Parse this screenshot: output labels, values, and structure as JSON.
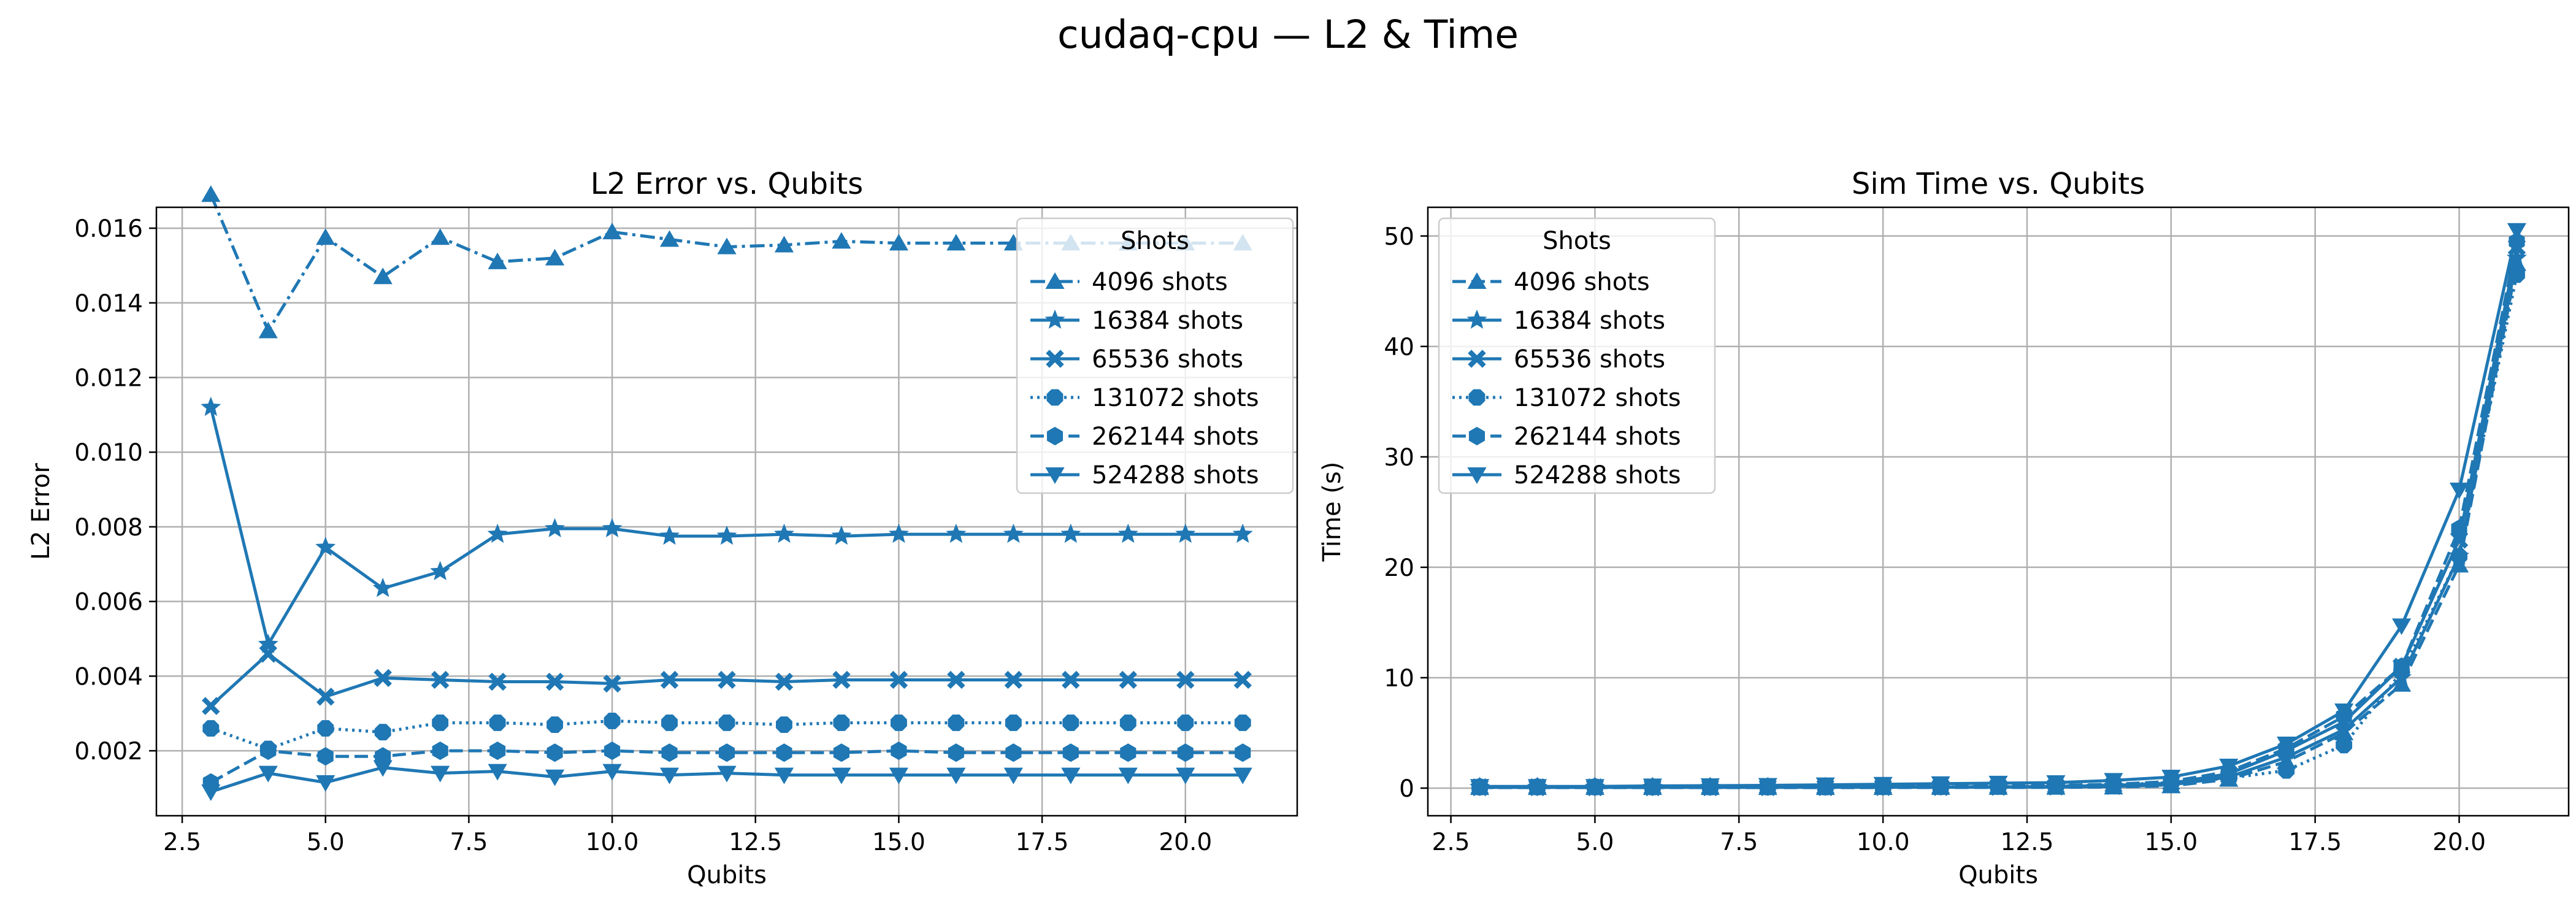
{
  "figure": {
    "suptitle": "cudaq-cpu — L2 & Time"
  },
  "chart_data": [
    {
      "type": "line",
      "title": "L2 Error vs. Qubits",
      "xlabel": "Qubits",
      "ylabel": "L2 Error",
      "xlim": [
        2.05,
        21.95
      ],
      "ylim": [
        0.00026,
        0.01656
      ],
      "xticks": [
        2.5,
        5.0,
        7.5,
        10.0,
        12.5,
        15.0,
        17.5,
        20.0
      ],
      "xtick_labels": [
        "2.5",
        "5.0",
        "7.5",
        "10.0",
        "12.5",
        "15.0",
        "17.5",
        "20.0"
      ],
      "yticks": [
        0.002,
        0.004,
        0.006,
        0.008,
        0.01,
        0.012,
        0.014,
        0.016
      ],
      "ytick_labels": [
        "0.002",
        "0.004",
        "0.006",
        "0.008",
        "0.010",
        "0.012",
        "0.014",
        "0.016"
      ],
      "grid": true,
      "legend": {
        "title": "Shots",
        "placement": "upper right"
      },
      "color": "#1f77b4",
      "x": [
        3,
        4,
        5,
        6,
        7,
        8,
        9,
        10,
        11,
        12,
        13,
        14,
        15,
        16,
        17,
        18,
        19,
        20,
        21
      ],
      "series": [
        {
          "name": "4096 shots",
          "marker": "triangle-up",
          "linestyle": "dashdot",
          "values": [
            0.0169,
            0.01325,
            0.01575,
            0.0147,
            0.01575,
            0.0151,
            0.0152,
            0.0159,
            0.0157,
            0.0155,
            0.01555,
            0.01565,
            0.0156,
            0.0156,
            0.0156,
            0.0156,
            0.0156,
            0.0156,
            0.0156
          ]
        },
        {
          "name": "16384 shots",
          "marker": "star",
          "linestyle": "solid",
          "values": [
            0.0112,
            0.00485,
            0.00745,
            0.00635,
            0.0068,
            0.0078,
            0.00795,
            0.00795,
            0.00775,
            0.00775,
            0.0078,
            0.00775,
            0.0078,
            0.0078,
            0.0078,
            0.0078,
            0.0078,
            0.0078,
            0.0078
          ]
        },
        {
          "name": "65536 shots",
          "marker": "x-filled",
          "linestyle": "solid",
          "values": [
            0.0032,
            0.0046,
            0.00345,
            0.00395,
            0.0039,
            0.00385,
            0.00385,
            0.0038,
            0.0039,
            0.0039,
            0.00385,
            0.0039,
            0.0039,
            0.0039,
            0.0039,
            0.0039,
            0.0039,
            0.0039,
            0.0039
          ]
        },
        {
          "name": "131072 shots",
          "marker": "octagon",
          "linestyle": "dotted",
          "values": [
            0.0026,
            0.00205,
            0.0026,
            0.0025,
            0.00275,
            0.00275,
            0.0027,
            0.0028,
            0.00275,
            0.00275,
            0.0027,
            0.00275,
            0.00275,
            0.00275,
            0.00275,
            0.00275,
            0.00275,
            0.00275,
            0.00275
          ]
        },
        {
          "name": "262144 shots",
          "marker": "hexagon",
          "linestyle": "dashed",
          "values": [
            0.00115,
            0.002,
            0.00185,
            0.00185,
            0.002,
            0.002,
            0.00195,
            0.002,
            0.00195,
            0.00195,
            0.00195,
            0.00195,
            0.002,
            0.00195,
            0.00195,
            0.00195,
            0.00195,
            0.00195,
            0.00195
          ]
        },
        {
          "name": "524288 shots",
          "marker": "triangle-down",
          "linestyle": "solid",
          "values": [
            0.0009,
            0.0014,
            0.00115,
            0.00155,
            0.0014,
            0.00145,
            0.0013,
            0.00145,
            0.00135,
            0.0014,
            0.00135,
            0.00135,
            0.00135,
            0.00135,
            0.00135,
            0.00135,
            0.00135,
            0.00135,
            0.00135
          ]
        }
      ]
    },
    {
      "type": "line",
      "title": "Sim Time vs. Qubits",
      "xlabel": "Qubits",
      "ylabel": "Time (s)",
      "xlim": [
        2.1,
        21.9
      ],
      "ylim": [
        -2.5,
        52.6
      ],
      "xticks": [
        2.5,
        5.0,
        7.5,
        10.0,
        12.5,
        15.0,
        17.5,
        20.0
      ],
      "xtick_labels": [
        "2.5",
        "5.0",
        "7.5",
        "10.0",
        "12.5",
        "15.0",
        "17.5",
        "20.0"
      ],
      "yticks": [
        0,
        10,
        20,
        30,
        40,
        50
      ],
      "ytick_labels": [
        "0",
        "10",
        "20",
        "30",
        "40",
        "50"
      ],
      "grid": true,
      "legend": {
        "title": "Shots",
        "placement": "upper left"
      },
      "color": "#1f77b4",
      "x": [
        3,
        4,
        5,
        6,
        7,
        8,
        9,
        10,
        11,
        12,
        13,
        14,
        15,
        16,
        17,
        18,
        19,
        20,
        21
      ],
      "series": [
        {
          "name": "4096 shots",
          "marker": "triangle-up",
          "linestyle": "dashed",
          "values": [
            0.05,
            0.05,
            0.05,
            0.05,
            0.05,
            0.05,
            0.05,
            0.05,
            0.06,
            0.06,
            0.07,
            0.1,
            0.2,
            0.8,
            2.4,
            5.0,
            9.4,
            20.2,
            47.5
          ]
        },
        {
          "name": "16384 shots",
          "marker": "star",
          "linestyle": "solid",
          "values": [
            0.07,
            0.07,
            0.07,
            0.07,
            0.07,
            0.07,
            0.08,
            0.08,
            0.08,
            0.09,
            0.1,
            0.15,
            0.3,
            1.0,
            2.8,
            5.3,
            10.0,
            21.0,
            48.0
          ]
        },
        {
          "name": "65536 shots",
          "marker": "x-filled",
          "linestyle": "solid",
          "values": [
            0.08,
            0.08,
            0.08,
            0.08,
            0.08,
            0.09,
            0.09,
            0.1,
            0.1,
            0.12,
            0.15,
            0.25,
            0.45,
            1.3,
            3.4,
            6.0,
            11.0,
            22.5,
            49.0
          ]
        },
        {
          "name": "131072 shots",
          "marker": "octagon",
          "linestyle": "dotted",
          "values": [
            0.1,
            0.1,
            0.1,
            0.1,
            0.1,
            0.1,
            0.1,
            0.12,
            0.12,
            0.15,
            0.18,
            0.3,
            0.5,
            0.9,
            1.6,
            3.9,
            10.5,
            21.0,
            46.5
          ]
        },
        {
          "name": "262144 shots",
          "marker": "hexagon",
          "linestyle": "dashed",
          "values": [
            0.12,
            0.12,
            0.12,
            0.12,
            0.13,
            0.13,
            0.14,
            0.15,
            0.16,
            0.2,
            0.25,
            0.35,
            0.6,
            1.5,
            3.6,
            6.5,
            11.0,
            23.5,
            49.5
          ]
        },
        {
          "name": "524288 shots",
          "marker": "triangle-down",
          "linestyle": "solid",
          "values": [
            0.15,
            0.15,
            0.15,
            0.2,
            0.22,
            0.25,
            0.3,
            0.35,
            0.4,
            0.45,
            0.5,
            0.7,
            1.0,
            2.0,
            4.0,
            7.0,
            14.7,
            27.0,
            50.5
          ]
        }
      ]
    }
  ]
}
